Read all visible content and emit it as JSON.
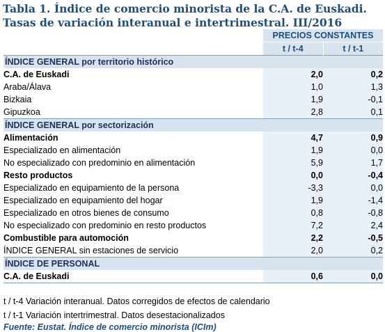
{
  "title": {
    "line1": "Tabla 1. Índice de comercio minorista de la C.A. de Euskadi.",
    "line2": "Tasas de variación interanual e intertrimestral. III/2016"
  },
  "header": {
    "group": "PRECIOS CONSTANTES",
    "col1": "t / t-4",
    "col2": "t / t-1"
  },
  "sections": [
    {
      "title": "ÍNDICE GENERAL por territorio histórico",
      "rows": [
        {
          "label": "C.A. de Euskadi",
          "v1": "2,0",
          "v2": "0,2",
          "bold": true,
          "level": 1
        },
        {
          "label": "Araba/Álava",
          "v1": "1,0",
          "v2": "1,3",
          "bold": false,
          "level": 2
        },
        {
          "label": "Bizkaia",
          "v1": "1,9",
          "v2": "-0,1",
          "bold": false,
          "level": 2
        },
        {
          "label": "Gipuzkoa",
          "v1": "2,8",
          "v2": "0,1",
          "bold": false,
          "level": 2
        }
      ]
    },
    {
      "title": "ÍNDICE GENERAL por sectorización",
      "rows": [
        {
          "label": "Alimentación",
          "v1": "4,7",
          "v2": "0,9",
          "bold": true,
          "level": 1
        },
        {
          "label": "Especializado en alimentación",
          "v1": "1,9",
          "v2": "0,0",
          "bold": false,
          "level": 2
        },
        {
          "label": "No especializado con predominio en alimentación",
          "v1": "5,9",
          "v2": "1,7",
          "bold": false,
          "level": 2
        },
        {
          "label": "Resto productos",
          "v1": "0,0",
          "v2": "-0,4",
          "bold": true,
          "level": 1
        },
        {
          "label": "Especializado en equipamiento de la persona",
          "v1": "-3,3",
          "v2": "0,0",
          "bold": false,
          "level": 2
        },
        {
          "label": "Especializado en equipamiento del hogar",
          "v1": "1,9",
          "v2": "-1,4",
          "bold": false,
          "level": 2
        },
        {
          "label": "Especializado en otros bienes de consumo",
          "v1": "0,8",
          "v2": "-0,8",
          "bold": false,
          "level": 2
        },
        {
          "label": "No especializado con predominio en resto productos",
          "v1": "7,2",
          "v2": "2,4",
          "bold": false,
          "level": 2
        },
        {
          "label": "Combustible para automoción",
          "v1": "2,2",
          "v2": "-0,5",
          "bold": true,
          "level": 1
        },
        {
          "label": "ÍNDICE GENERAL sin estaciones de servicio",
          "v1": "2,0",
          "v2": "0,2",
          "bold": false,
          "level": 0
        }
      ]
    },
    {
      "title": "ÍNDICE DE PERSONAL",
      "rows": [
        {
          "label": "C.A. de Euskadi",
          "v1": "0,6",
          "v2": "0,0",
          "bold": true,
          "level": 1
        }
      ]
    }
  ],
  "notes": {
    "n1": "t / t-4 Variación interanual. Datos corregidos de efectos de calendario",
    "n2": "t / t-1 Variación intertrimestral. Datos desestacionalizados",
    "source": "Fuente: Eustat. Índice de comercio minorista (ICIm)"
  }
}
